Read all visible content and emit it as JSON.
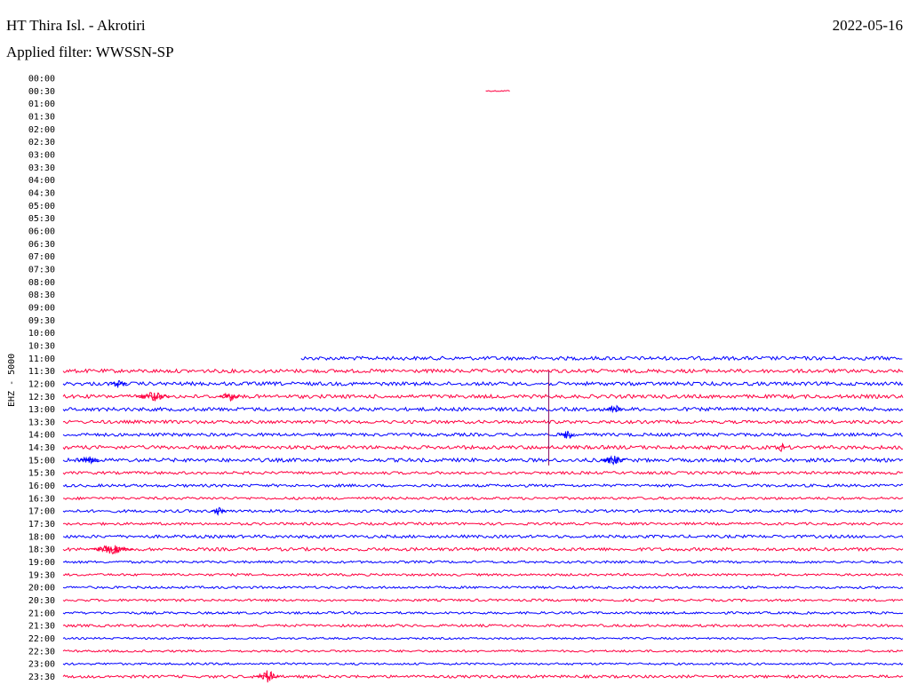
{
  "header": {
    "station": "HT Thira Isl. - Akrotiri",
    "date": "2022-05-16",
    "filter": "Applied filter: WWSSN-SP"
  },
  "chart_data": {
    "type": "line",
    "channel_label": "EHZ - 5000",
    "y_ticks": [
      "00:00",
      "00:30",
      "01:00",
      "01:30",
      "02:00",
      "02:30",
      "03:00",
      "03:30",
      "04:00",
      "04:30",
      "05:00",
      "05:30",
      "06:00",
      "06:30",
      "07:00",
      "07:30",
      "08:00",
      "08:30",
      "09:00",
      "09:30",
      "10:00",
      "10:30",
      "11:00",
      "11:30",
      "12:00",
      "12:30",
      "13:00",
      "13:30",
      "14:00",
      "14:30",
      "15:00",
      "15:30",
      "16:00",
      "16:30",
      "17:00",
      "17:30",
      "18:00",
      "18:30",
      "19:00",
      "19:30",
      "20:00",
      "20:30",
      "21:00",
      "21:30",
      "22:00",
      "22:30",
      "23:00",
      "23:30"
    ],
    "x_range_minutes": [
      0,
      30
    ],
    "colors": {
      "odd_rows": "#ff0040",
      "even_rows": "#0000ff"
    },
    "traces": [
      {
        "row": "00:30",
        "start_min": 15.1,
        "end_min": 16.0,
        "level": 0.05
      },
      {
        "row": "11:00",
        "start_min": 8.5,
        "end_min": 30,
        "level": 0.6
      },
      {
        "row": "11:30",
        "start_min": 0,
        "end_min": 30,
        "level": 0.6
      },
      {
        "row": "12:00",
        "start_min": 0,
        "end_min": 30,
        "level": 0.6
      },
      {
        "row": "12:30",
        "start_min": 0,
        "end_min": 30,
        "level": 0.6
      },
      {
        "row": "13:00",
        "start_min": 0,
        "end_min": 30,
        "level": 0.6
      },
      {
        "row": "13:30",
        "start_min": 0,
        "end_min": 30,
        "level": 0.5
      },
      {
        "row": "14:00",
        "start_min": 0,
        "end_min": 30,
        "level": 0.5
      },
      {
        "row": "14:30",
        "start_min": 0,
        "end_min": 30,
        "level": 0.6
      },
      {
        "row": "15:00",
        "start_min": 0,
        "end_min": 30,
        "level": 0.6
      },
      {
        "row": "15:30",
        "start_min": 0,
        "end_min": 30,
        "level": 0.4
      },
      {
        "row": "16:00",
        "start_min": 0,
        "end_min": 30,
        "level": 0.4
      },
      {
        "row": "16:30",
        "start_min": 0,
        "end_min": 30,
        "level": 0.35
      },
      {
        "row": "17:00",
        "start_min": 0,
        "end_min": 30,
        "level": 0.4
      },
      {
        "row": "17:30",
        "start_min": 0,
        "end_min": 30,
        "level": 0.35
      },
      {
        "row": "18:00",
        "start_min": 0,
        "end_min": 30,
        "level": 0.45
      },
      {
        "row": "18:30",
        "start_min": 0,
        "end_min": 30,
        "level": 0.5
      },
      {
        "row": "19:00",
        "start_min": 0,
        "end_min": 30,
        "level": 0.3
      },
      {
        "row": "19:30",
        "start_min": 0,
        "end_min": 30,
        "level": 0.3
      },
      {
        "row": "20:00",
        "start_min": 0,
        "end_min": 30,
        "level": 0.3
      },
      {
        "row": "20:30",
        "start_min": 0,
        "end_min": 30,
        "level": 0.3
      },
      {
        "row": "21:00",
        "start_min": 0,
        "end_min": 30,
        "level": 0.3
      },
      {
        "row": "21:30",
        "start_min": 0,
        "end_min": 30,
        "level": 0.35
      },
      {
        "row": "22:00",
        "start_min": 0,
        "end_min": 30,
        "level": 0.2
      },
      {
        "row": "22:30",
        "start_min": 0,
        "end_min": 30,
        "level": 0.25
      },
      {
        "row": "23:00",
        "start_min": 0,
        "end_min": 30,
        "level": 0.25
      },
      {
        "row": "23:30",
        "start_min": 0,
        "end_min": 30,
        "level": 0.4
      }
    ],
    "bursts": [
      {
        "row": "12:00",
        "min": 1.7,
        "width_min": 0.6,
        "amp": 0.35
      },
      {
        "row": "12:30",
        "min": 2.6,
        "width_min": 1.2,
        "amp": 0.4
      },
      {
        "row": "12:30",
        "min": 5.6,
        "width_min": 0.7,
        "amp": 0.35
      },
      {
        "row": "13:00",
        "min": 19.4,
        "width_min": 0.6,
        "amp": 0.35
      },
      {
        "row": "14:00",
        "min": 17.7,
        "width_min": 0.6,
        "amp": 0.4
      },
      {
        "row": "14:30",
        "min": 25.5,
        "width_min": 0.3,
        "amp": 0.5
      },
      {
        "row": "15:00",
        "min": 0.5,
        "width_min": 0.8,
        "amp": 0.3
      },
      {
        "row": "15:00",
        "min": 19.2,
        "width_min": 0.9,
        "amp": 0.35
      },
      {
        "row": "17:00",
        "min": 5.3,
        "width_min": 0.5,
        "amp": 0.3
      },
      {
        "row": "18:30",
        "min": 1.0,
        "width_min": 1.5,
        "amp": 0.35
      },
      {
        "row": "23:30",
        "min": 6.9,
        "width_min": 0.8,
        "amp": 0.55
      }
    ],
    "event_spike": {
      "from_row": "11:30",
      "to_row": "15:00",
      "min": 17.35
    }
  }
}
